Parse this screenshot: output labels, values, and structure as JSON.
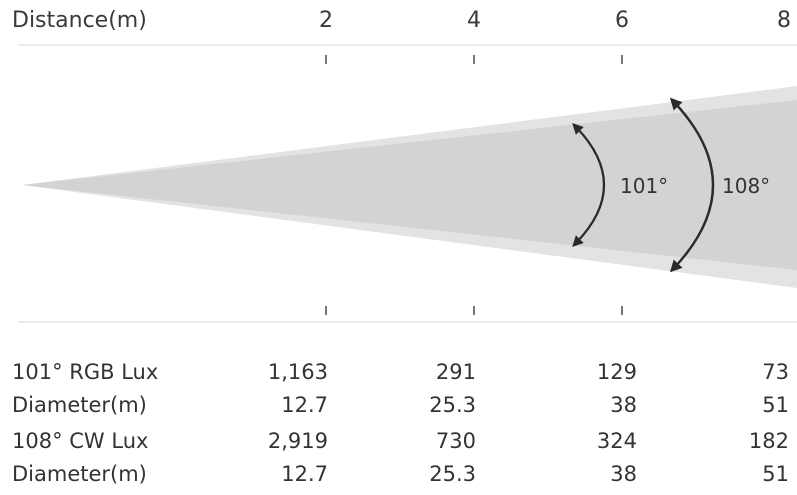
{
  "header": {
    "axis_title": "Distance(m)",
    "ticks": [
      "2",
      "4",
      "6",
      "8"
    ]
  },
  "beams": [
    {
      "angle_label": "101°",
      "color": "#d3d3d3"
    },
    {
      "angle_label": "108°",
      "color": "#e3e3e3"
    }
  ],
  "table": {
    "rows": [
      {
        "label": "101° RGB Lux",
        "values": [
          "1,163",
          "291",
          "129",
          "73"
        ]
      },
      {
        "label": "Diameter(m)",
        "values": [
          "12.7",
          "25.3",
          "38",
          "51"
        ]
      },
      {
        "label": "108° CW Lux",
        "values": [
          "2,919",
          "730",
          "324",
          "182"
        ]
      },
      {
        "label": "Diameter(m)",
        "values": [
          "12.7",
          "25.3",
          "38",
          "51"
        ]
      }
    ]
  }
}
